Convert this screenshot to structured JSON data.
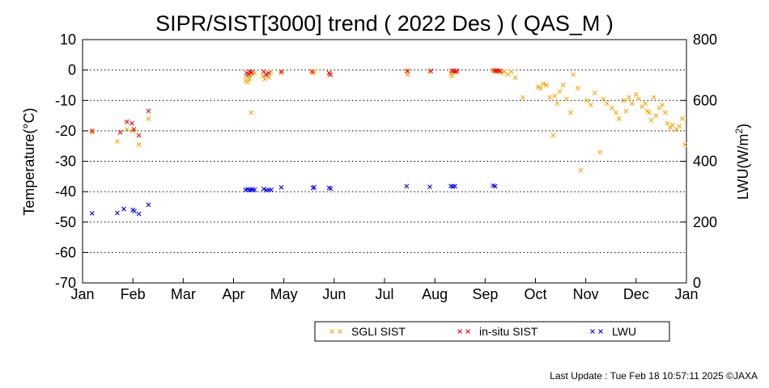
{
  "chart_data": {
    "type": "scatter",
    "title": "SIPR/SIST[3000] trend ( 2022 Des ) ( QAS_M )",
    "ylabel": "Temperature(°C)",
    "y2label_main": "LWU(W/m",
    "y2label_sup": "2",
    "y2label_close": ")",
    "ylim": [
      -70,
      10
    ],
    "y2lim": [
      0,
      800
    ],
    "xlim": [
      0,
      12
    ],
    "yticks": [
      "10",
      "0",
      "-10",
      "-20",
      "-30",
      "-40",
      "-50",
      "-60",
      "-70"
    ],
    "y2ticks": [
      "800",
      "600",
      "400",
      "200",
      "0"
    ],
    "xticks": [
      "Jan",
      "Feb",
      "Mar",
      "Apr",
      "May",
      "Jun",
      "Jul",
      "Aug",
      "Sep",
      "Oct",
      "Nov",
      "Dec",
      "Jan"
    ],
    "grid": true,
    "legend_position": "bottom",
    "footer": "Last Update : Tue Feb 18 10:57:11 2025  ©JAXA",
    "series": [
      {
        "name": "SGLI SIST",
        "color": "#ffa500",
        "axis": "left",
        "x": [
          0.19,
          0.69,
          0.88,
          1.0,
          1.12,
          1.31,
          3.24,
          3.26,
          3.28,
          3.3,
          3.32,
          3.35,
          3.38,
          3.42,
          3.58,
          3.62,
          3.66,
          3.7,
          3.74,
          3.95,
          4.58,
          4.6,
          4.9,
          4.93,
          6.44,
          6.46,
          6.9,
          7.32,
          7.34,
          7.36,
          7.4,
          8.16,
          8.2,
          8.25,
          8.32,
          8.38,
          8.45,
          8.52,
          8.6,
          8.75,
          9.05,
          9.1,
          9.16,
          9.22,
          9.28,
          9.35,
          9.38,
          9.43,
          9.48,
          9.55,
          9.62,
          9.7,
          9.75,
          9.84,
          9.9,
          10.02,
          10.1,
          10.18,
          10.28,
          10.35,
          10.42,
          10.52,
          10.6,
          10.66,
          10.75,
          10.8,
          10.86,
          10.92,
          11.0,
          11.05,
          11.12,
          11.18,
          11.22,
          11.26,
          11.3,
          11.35,
          11.4,
          11.46,
          11.52,
          11.58,
          11.62,
          11.68,
          11.72,
          11.8,
          11.86,
          11.92,
          11.97
        ],
        "y": [
          -20.5,
          -23.5,
          -19.5,
          -20.0,
          -24.5,
          -16.0,
          -3.5,
          -2.0,
          -4.0,
          -2.5,
          -3.0,
          -14.0,
          -1.5,
          -1.0,
          -2.0,
          -3.0,
          -1.5,
          -2.5,
          -0.5,
          -1.0,
          -1.0,
          -0.5,
          -1.0,
          -1.5,
          -0.5,
          -1.5,
          -0.5,
          -1.0,
          -2.0,
          -0.5,
          -0.8,
          0.0,
          -0.5,
          -0.3,
          -1.0,
          -0.5,
          -1.5,
          -0.5,
          -2.5,
          -9.0,
          -5.5,
          -6.0,
          -4.5,
          -5.0,
          -9.0,
          -21.5,
          -8.5,
          -11.0,
          -7.0,
          -5.0,
          -9.5,
          -14.0,
          -1.5,
          -6.0,
          -33.0,
          -10.0,
          -11.5,
          -7.5,
          -27.0,
          -9.5,
          -11.0,
          -12.5,
          -14.0,
          -16.0,
          -10.0,
          -13.5,
          -9.0,
          -11.0,
          -8.0,
          -9.5,
          -12.0,
          -11.0,
          -13.5,
          -14.0,
          -16.5,
          -9.0,
          -15.0,
          -12.5,
          -11.5,
          -14.0,
          -17.5,
          -19.0,
          -18.0,
          -19.5,
          -18.5,
          -16.0,
          -24.5
        ]
      },
      {
        "name": "in-situ SIST",
        "color": "#ff0000",
        "axis": "left",
        "x": [
          0.19,
          0.75,
          0.88,
          0.98,
          1.02,
          1.12,
          1.31,
          3.26,
          3.3,
          3.33,
          3.36,
          3.6,
          3.65,
          3.7,
          3.95,
          4.56,
          4.9,
          4.92,
          6.46,
          6.92,
          7.34,
          7.38,
          7.42,
          7.44,
          8.18,
          8.22,
          8.26,
          8.3
        ],
        "y": [
          -20.0,
          -20.5,
          -17.0,
          -17.5,
          -19.5,
          -21.5,
          -13.5,
          -1.0,
          -1.5,
          -0.5,
          -0.8,
          -0.5,
          -1.5,
          -1.0,
          -0.5,
          -0.5,
          -1.0,
          -1.5,
          -0.3,
          -0.3,
          -0.2,
          -0.3,
          -0.5,
          -0.2,
          -0.2,
          -0.3,
          -0.2,
          -0.3
        ]
      },
      {
        "name": "LWU",
        "color": "#0000ff",
        "axis": "right",
        "x": [
          0.19,
          0.69,
          0.82,
          1.0,
          1.03,
          1.12,
          1.31,
          3.24,
          3.28,
          3.32,
          3.35,
          3.38,
          3.42,
          3.6,
          3.65,
          3.7,
          3.75,
          3.95,
          4.58,
          4.6,
          4.9,
          4.93,
          6.44,
          6.9,
          7.32,
          7.36,
          7.4,
          8.16,
          8.2
        ],
        "y": [
          229,
          230,
          243,
          240,
          236,
          227,
          257,
          306,
          308,
          305,
          306,
          308,
          306,
          309,
          305,
          306,
          306,
          314,
          312,
          315,
          313,
          310,
          318,
          316,
          318,
          317,
          318,
          320,
          318
        ]
      }
    ]
  }
}
